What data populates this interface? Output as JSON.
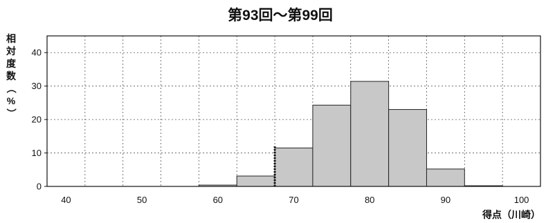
{
  "chart_data": {
    "type": "bar",
    "title": "第93回～第99回",
    "xlabel": "得点（川崎）",
    "ylabel": "相対度数（%）",
    "x_ticks": [
      40,
      50,
      60,
      70,
      80,
      90,
      100
    ],
    "y_ticks": [
      0,
      10,
      20,
      30,
      40
    ],
    "xlim": [
      37.5,
      102.5
    ],
    "ylim": [
      0,
      45
    ],
    "grid": true,
    "bar_fill": "#c8c8c8",
    "bar_stroke": "#222222",
    "marker_x": 67.5,
    "marker_y": 12,
    "bins": [
      {
        "x_start": 37.5,
        "x_end": 42.5,
        "value": 0
      },
      {
        "x_start": 42.5,
        "x_end": 47.5,
        "value": 0
      },
      {
        "x_start": 47.5,
        "x_end": 52.5,
        "value": 0
      },
      {
        "x_start": 52.5,
        "x_end": 57.5,
        "value": 0
      },
      {
        "x_start": 57.5,
        "x_end": 62.5,
        "value": 0.4
      },
      {
        "x_start": 62.5,
        "x_end": 67.5,
        "value": 3.1
      },
      {
        "x_start": 67.5,
        "x_end": 72.5,
        "value": 11.5
      },
      {
        "x_start": 72.5,
        "x_end": 77.5,
        "value": 24.3
      },
      {
        "x_start": 77.5,
        "x_end": 82.5,
        "value": 31.4
      },
      {
        "x_start": 82.5,
        "x_end": 87.5,
        "value": 23.0
      },
      {
        "x_start": 87.5,
        "x_end": 92.5,
        "value": 5.2
      },
      {
        "x_start": 92.5,
        "x_end": 97.5,
        "value": 0.2
      }
    ]
  }
}
